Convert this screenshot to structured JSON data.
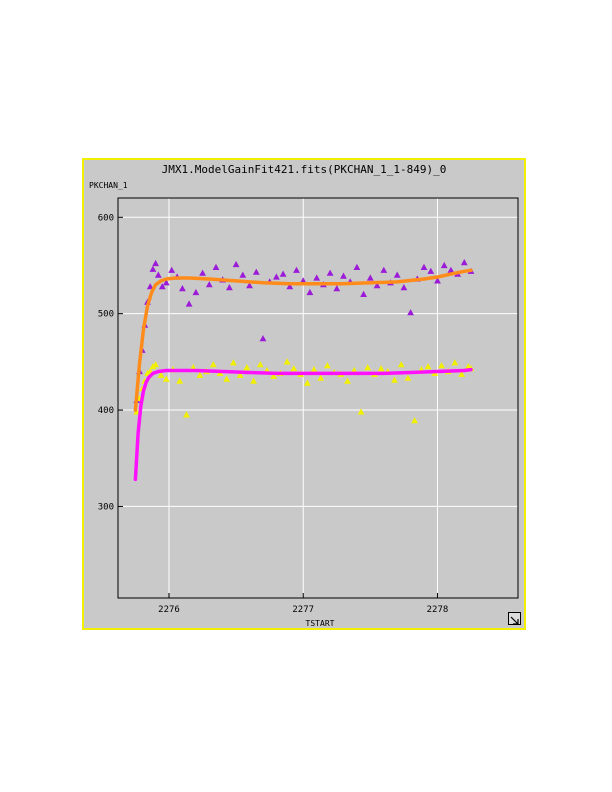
{
  "window": {
    "title": "JMX1.ModelGainFit421.fits(PKCHAN_1_1-849)_0",
    "resize_icon": "resize-arrow-icon"
  },
  "colors": {
    "frame_border": "#f2f000",
    "panel": "#c9c9c9",
    "grid": "#ffffff",
    "series_upper_points": "#9b1bd8",
    "series_lower_points": "#f2f000",
    "fit_upper": "#ff8c1a",
    "fit_lower": "#ff10ff"
  },
  "chart_data": {
    "type": "scatter",
    "title": "JMX1.ModelGainFit421.fits(PKCHAN_1_1-849)_0",
    "xlabel": "TSTART",
    "ylabel": "PKCHAN_1",
    "xlim": [
      2275.62,
      2278.6
    ],
    "ylim": [
      205,
      620
    ],
    "xticks": [
      2276,
      2277,
      2278
    ],
    "yticks": [
      300,
      400,
      500,
      600
    ],
    "grid": true,
    "series": [
      {
        "marker": "triangle",
        "color": "#9b1bd8",
        "x": [
          2275.76,
          2275.78,
          2275.8,
          2275.82,
          2275.84,
          2275.86,
          2275.88,
          2275.9,
          2275.92,
          2275.95,
          2275.98,
          2276.02,
          2276.06,
          2276.1,
          2276.15,
          2276.2,
          2276.25,
          2276.3,
          2276.35,
          2276.4,
          2276.45,
          2276.5,
          2276.55,
          2276.6,
          2276.65,
          2276.7,
          2276.75,
          2276.8,
          2276.85,
          2276.9,
          2276.95,
          2277.0,
          2277.05,
          2277.1,
          2277.15,
          2277.2,
          2277.25,
          2277.3,
          2277.35,
          2277.4,
          2277.45,
          2277.5,
          2277.55,
          2277.6,
          2277.65,
          2277.7,
          2277.75,
          2277.8,
          2277.85,
          2277.9,
          2277.95,
          2278.0,
          2278.05,
          2278.1,
          2278.15,
          2278.2,
          2278.25
        ],
        "y": [
          410,
          440,
          462,
          488,
          512,
          528,
          546,
          552,
          540,
          528,
          532,
          545,
          538,
          526,
          510,
          522,
          542,
          530,
          548,
          535,
          527,
          551,
          540,
          529,
          543,
          474,
          533,
          538,
          541,
          528,
          545,
          534,
          522,
          537,
          530,
          542,
          526,
          539,
          533,
          548,
          520,
          537,
          529,
          545,
          532,
          540,
          527,
          501,
          536,
          548,
          544,
          534,
          550,
          545,
          541,
          553,
          544
        ]
      },
      {
        "marker": "triangle",
        "color": "#f2f000",
        "x": [
          2275.76,
          2275.78,
          2275.8,
          2275.82,
          2275.84,
          2275.86,
          2275.88,
          2275.9,
          2275.94,
          2275.98,
          2276.03,
          2276.08,
          2276.13,
          2276.18,
          2276.23,
          2276.28,
          2276.33,
          2276.38,
          2276.43,
          2276.48,
          2276.53,
          2276.58,
          2276.63,
          2276.68,
          2276.73,
          2276.78,
          2276.83,
          2276.88,
          2276.93,
          2276.98,
          2277.03,
          2277.08,
          2277.13,
          2277.18,
          2277.23,
          2277.28,
          2277.33,
          2277.38,
          2277.43,
          2277.48,
          2277.53,
          2277.58,
          2277.63,
          2277.68,
          2277.73,
          2277.78,
          2277.83,
          2277.88,
          2277.93,
          2277.98,
          2278.03,
          2278.08,
          2278.13,
          2278.18,
          2278.23,
          2278.25
        ],
        "y": [
          398,
          412,
          422,
          430,
          438,
          440,
          445,
          447,
          436,
          432,
          442,
          430,
          395,
          444,
          436,
          440,
          447,
          438,
          432,
          449,
          436,
          444,
          430,
          447,
          441,
          435,
          438,
          450,
          443,
          437,
          428,
          442,
          433,
          446,
          439,
          437,
          430,
          441,
          398,
          444,
          437,
          443,
          440,
          431,
          447,
          433,
          389,
          442,
          445,
          438,
          446,
          440,
          449,
          437,
          445,
          443
        ]
      },
      {
        "marker": "line",
        "color": "#ff8c1a",
        "x": [
          2275.75,
          2275.78,
          2275.81,
          2275.84,
          2275.87,
          2275.9,
          2275.94,
          2275.98,
          2276.05,
          2276.15,
          2276.3,
          2276.5,
          2276.7,
          2276.9,
          2277.1,
          2277.3,
          2277.5,
          2277.7,
          2277.9,
          2278.0,
          2278.1,
          2278.2,
          2278.25
        ],
        "y": [
          400,
          448,
          484,
          508,
          522,
          530,
          534,
          536,
          537,
          537,
          536,
          534,
          532,
          531,
          531,
          531,
          532,
          533,
          536,
          538,
          541,
          544,
          545
        ]
      },
      {
        "marker": "line",
        "color": "#ff10ff",
        "x": [
          2275.75,
          2275.77,
          2275.79,
          2275.81,
          2275.83,
          2275.85,
          2275.88,
          2275.92,
          2275.98,
          2276.05,
          2276.2,
          2276.4,
          2276.6,
          2276.8,
          2277.0,
          2277.2,
          2277.4,
          2277.6,
          2277.8,
          2278.0,
          2278.2,
          2278.25
        ],
        "y": [
          328,
          376,
          404,
          420,
          429,
          434,
          438,
          440,
          441,
          441,
          441,
          440,
          439,
          438,
          438,
          438,
          438,
          438,
          439,
          440,
          441,
          442
        ]
      }
    ]
  }
}
